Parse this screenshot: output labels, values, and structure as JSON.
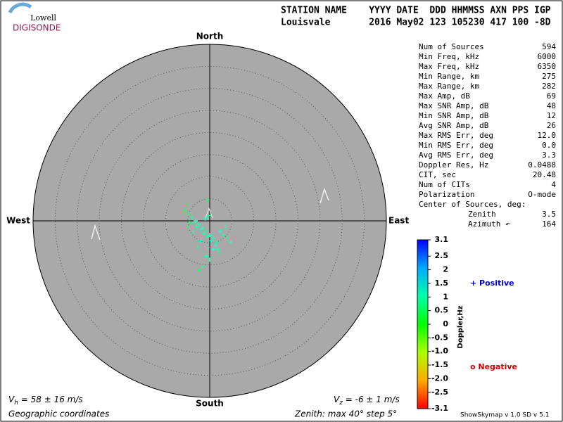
{
  "logo": {
    "top": "Lowell",
    "bottom": "DIGISONDE"
  },
  "header": {
    "line1": "STATION NAME    YYYY DATE  DDD HHMMSS AXN PPS IGP",
    "line2": "Louisvale       2016 May02 123 105230 417 100 -8D"
  },
  "stats": [
    {
      "label": "Num of Sources",
      "value": "594"
    },
    {
      "label": "Min Freq, kHz",
      "value": "6000"
    },
    {
      "label": "Max Freq, kHz",
      "value": "6350"
    },
    {
      "label": "Min Range, km",
      "value": "275"
    },
    {
      "label": "Max Range, km",
      "value": "282"
    },
    {
      "label": "Max Amp, dB",
      "value": "69"
    },
    {
      "label": "Max SNR Amp, dB",
      "value": "48"
    },
    {
      "label": "Min SNR Amp, dB",
      "value": "12"
    },
    {
      "label": "Avg SNR Amp, dB",
      "value": "26"
    },
    {
      "label": "Max RMS Err, deg",
      "value": "12.0"
    },
    {
      "label": "Min RMS Err, deg",
      "value": "0.0"
    },
    {
      "label": "Avg RMS Err, deg",
      "value": "3.3"
    },
    {
      "label": "Doppler Res, Hz",
      "value": "0.0488"
    },
    {
      "label": "CIT, sec",
      "value": "20.48"
    },
    {
      "label": "Num of CITs",
      "value": "4"
    },
    {
      "label": "Polarization",
      "value": "O-mode"
    },
    {
      "label": "Center of Sources, deg:"
    },
    {
      "label": "Zenith",
      "value": "3.5",
      "indent": true
    },
    {
      "label": "Azimuth ↶",
      "value": "164",
      "indent": true
    }
  ],
  "chart_data": {
    "type": "skymap",
    "directions": {
      "north": "North",
      "south": "South",
      "east": "East",
      "west": "West"
    },
    "rlim": [
      0,
      40
    ],
    "rticks": [
      5,
      10,
      15,
      20,
      25,
      30,
      35
    ],
    "x": [
      -5.6,
      -4.8,
      -4.0,
      -3.2,
      -2.4,
      -1.6,
      -0.8,
      0,
      0.8,
      1.6,
      -4.5,
      -3.5,
      -2.9,
      -1.9,
      -1.3,
      -0.5,
      0.3,
      1.3,
      1.9,
      -0.8,
      0,
      -2.4,
      -1.6,
      2.4,
      3.2,
      4.0,
      4.8,
      -5.2,
      -6.0,
      -1.0,
      -0.2,
      -5.0,
      -3.8,
      -2.0,
      -0.5,
      2.0,
      -0.5,
      3.6,
      0.8,
      -2.8
    ],
    "y": [
      2.4,
      1.6,
      0.8,
      0,
      -0.8,
      -1.6,
      -2.4,
      -3.2,
      -4.0,
      -4.8,
      -0.5,
      -0.3,
      -1.3,
      -1.9,
      -2.9,
      -3.5,
      -4.5,
      -5.6,
      -6.4,
      -8.0,
      -8.8,
      -11.2,
      -10.4,
      -2.4,
      -3.2,
      -4.0,
      -4.8,
      3.6,
      2.0,
      0.5,
      1.2,
      -1.5,
      -2.5,
      -4.5,
      -6.0,
      -7.0,
      4.8,
      -1.2,
      -6.5,
      -6.0
    ],
    "doppler": [
      0.5,
      0.7,
      0.9,
      1.1,
      1.2,
      1.0,
      0.8,
      1.3,
      1.1,
      0.9,
      0.6,
      0.8,
      1.0,
      1.2,
      1.1,
      0.9,
      1.3,
      1.2,
      1.0,
      1.1,
      0.9,
      0.6,
      0.8,
      1.2,
      1.0,
      0.9,
      1.1,
      0.4,
      0.5,
      1.3,
      0.8,
      0.7,
      1.0,
      1.2,
      1.1,
      0.9,
      0.5,
      1.0,
      1.2,
      0.8
    ],
    "colorbar": {
      "label": "Doppler,Hz",
      "clim": [
        -3.1,
        3.1
      ],
      "ticks": [
        3.1,
        2.5,
        2,
        1.5,
        1,
        0.5,
        0,
        -0.5,
        {
          "value": -1,
          "label": "-1.0"
        },
        -1.5,
        {
          "value": -2,
          "label": "-2.0"
        },
        -2.5,
        -3.1
      ]
    },
    "positive": "+ Positive",
    "negative": "o Negative"
  },
  "footer": {
    "vh_v": "V",
    "vh_sub": "h",
    "vh_rest": " = 58 ± 16 m/s",
    "vz_v": "V",
    "vz_sub": "z",
    "vz_rest": " = -6 ± 1 m/s",
    "coords": "Geographic coordinates",
    "zenith": "Zenith: max 40°  step 5°",
    "version": "ShowSkymap v 1.0  SD v 5.1"
  }
}
